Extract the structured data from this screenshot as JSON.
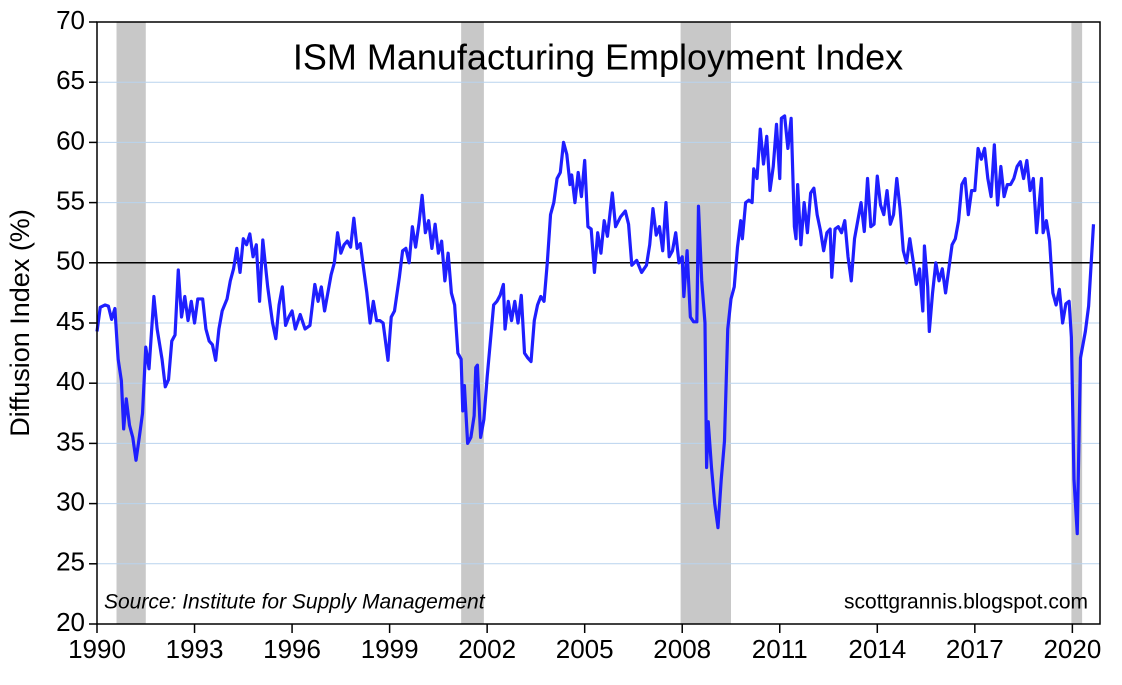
{
  "chart_data": {
    "type": "line",
    "title": "ISM Manufacturing Employment Index",
    "y_label": "Diffusion Index (%)",
    "source": "Source: Institute for Supply Management",
    "credit": "scottgrannis.blogspot.com",
    "xlim": [
      1990,
      2020.85
    ],
    "xticks": [
      1990,
      1993,
      1996,
      1999,
      2002,
      2005,
      2008,
      2011,
      2014,
      2017,
      2020
    ],
    "ylim": [
      20,
      70
    ],
    "yticks": [
      20,
      25,
      30,
      35,
      40,
      45,
      50,
      55,
      60,
      65,
      70
    ],
    "grid": true,
    "reference_line": 50,
    "recession_color": "#c8c8c8",
    "recessions": [
      [
        1990.6,
        1991.5
      ],
      [
        2001.2,
        2001.9
      ],
      [
        2007.95,
        2009.5
      ],
      [
        2019.97,
        2020.3
      ]
    ],
    "x": [
      1990.0,
      1990.1,
      1990.25,
      1990.35,
      1990.45,
      1990.55,
      1990.65,
      1990.75,
      1990.82,
      1990.9,
      1991.0,
      1991.1,
      1991.2,
      1991.3,
      1991.4,
      1991.5,
      1991.6,
      1991.75,
      1991.85,
      1992.0,
      1992.1,
      1992.2,
      1992.3,
      1992.4,
      1992.5,
      1992.6,
      1992.7,
      1992.8,
      1992.9,
      1993.0,
      1993.1,
      1993.25,
      1993.35,
      1993.45,
      1993.55,
      1993.65,
      1993.75,
      1993.85,
      1994.0,
      1994.1,
      1994.2,
      1994.3,
      1994.4,
      1994.5,
      1994.6,
      1994.7,
      1994.8,
      1994.9,
      1995.0,
      1995.1,
      1995.25,
      1995.4,
      1995.5,
      1995.6,
      1995.7,
      1995.8,
      1995.9,
      1996.0,
      1996.1,
      1996.25,
      1996.4,
      1996.55,
      1996.7,
      1996.8,
      1996.9,
      1997.0,
      1997.1,
      1997.2,
      1997.3,
      1997.4,
      1997.5,
      1997.6,
      1997.7,
      1997.8,
      1997.9,
      1998.0,
      1998.1,
      1998.2,
      1998.3,
      1998.4,
      1998.5,
      1998.6,
      1998.7,
      1998.8,
      1998.95,
      1999.05,
      1999.15,
      1999.3,
      1999.4,
      1999.5,
      1999.6,
      1999.7,
      1999.8,
      1999.9,
      2000.0,
      2000.1,
      2000.2,
      2000.3,
      2000.4,
      2000.5,
      2000.6,
      2000.7,
      2000.8,
      2000.9,
      2001.0,
      2001.1,
      2001.2,
      2001.25,
      2001.3,
      2001.4,
      2001.5,
      2001.6,
      2001.65,
      2001.7,
      2001.8,
      2001.9,
      2002.0,
      2002.1,
      2002.2,
      2002.3,
      2002.4,
      2002.5,
      2002.55,
      2002.65,
      2002.75,
      2002.85,
      2002.95,
      2003.05,
      2003.15,
      2003.25,
      2003.35,
      2003.45,
      2003.55,
      2003.65,
      2003.75,
      2003.85,
      2003.95,
      2004.05,
      2004.15,
      2004.25,
      2004.35,
      2004.45,
      2004.55,
      2004.6,
      2004.7,
      2004.8,
      2004.9,
      2005.0,
      2005.1,
      2005.2,
      2005.3,
      2005.4,
      2005.5,
      2005.6,
      2005.7,
      2005.85,
      2005.95,
      2006.1,
      2006.25,
      2006.35,
      2006.45,
      2006.6,
      2006.75,
      2006.9,
      2007.0,
      2007.1,
      2007.2,
      2007.3,
      2007.4,
      2007.5,
      2007.6,
      2007.7,
      2007.8,
      2007.9,
      2008.0,
      2008.05,
      2008.15,
      2008.25,
      2008.35,
      2008.45,
      2008.5,
      2008.6,
      2008.7,
      2008.75,
      2008.8,
      2008.9,
      2009.0,
      2009.1,
      2009.2,
      2009.3,
      2009.4,
      2009.5,
      2009.6,
      2009.7,
      2009.8,
      2009.85,
      2009.95,
      2010.05,
      2010.15,
      2010.2,
      2010.3,
      2010.4,
      2010.5,
      2010.6,
      2010.7,
      2010.8,
      2010.9,
      2011.0,
      2011.05,
      2011.15,
      2011.25,
      2011.35,
      2011.45,
      2011.5,
      2011.55,
      2011.65,
      2011.75,
      2011.85,
      2011.95,
      2012.05,
      2012.15,
      2012.25,
      2012.35,
      2012.45,
      2012.55,
      2012.6,
      2012.7,
      2012.8,
      2012.9,
      2013.0,
      2013.1,
      2013.2,
      2013.3,
      2013.4,
      2013.5,
      2013.6,
      2013.7,
      2013.8,
      2013.9,
      2014.0,
      2014.1,
      2014.2,
      2014.3,
      2014.4,
      2014.5,
      2014.6,
      2014.7,
      2014.8,
      2014.9,
      2015.0,
      2015.1,
      2015.2,
      2015.3,
      2015.4,
      2015.45,
      2015.55,
      2015.6,
      2015.7,
      2015.8,
      2015.9,
      2016.0,
      2016.1,
      2016.2,
      2016.3,
      2016.4,
      2016.5,
      2016.6,
      2016.7,
      2016.8,
      2016.9,
      2017.0,
      2017.1,
      2017.2,
      2017.3,
      2017.4,
      2017.5,
      2017.6,
      2017.7,
      2017.8,
      2017.9,
      2018.0,
      2018.1,
      2018.2,
      2018.3,
      2018.4,
      2018.5,
      2018.6,
      2018.7,
      2018.8,
      2018.9,
      2019.0,
      2019.05,
      2019.1,
      2019.2,
      2019.3,
      2019.4,
      2019.5,
      2019.6,
      2019.7,
      2019.8,
      2019.9,
      2019.97,
      2020.05,
      2020.15,
      2020.25,
      2020.4,
      2020.5,
      2020.65
    ],
    "series": [
      {
        "color": "#1f1fff",
        "values": [
          44.3,
          46.3,
          46.5,
          46.4,
          45.3,
          46.2,
          42,
          40.2,
          36.2,
          38.7,
          36.5,
          35.5,
          33.6,
          35.5,
          37.5,
          43,
          41.2,
          47.2,
          44.5,
          42,
          39.7,
          40.3,
          43.5,
          44,
          49.4,
          45.5,
          47.2,
          45.2,
          46.8,
          45,
          47,
          47,
          44.5,
          43.5,
          43.2,
          41.9,
          44.5,
          46,
          47,
          48.5,
          49.5,
          51.2,
          49.2,
          52,
          51.5,
          52.4,
          50.5,
          51.5,
          46.8,
          51.9,
          48,
          45,
          43.7,
          46.5,
          48,
          44.8,
          45.5,
          46,
          44.5,
          45.7,
          44.5,
          44.8,
          48.2,
          46.8,
          48,
          46,
          47.5,
          49,
          50,
          52.5,
          50.8,
          51.5,
          51.8,
          51.3,
          53.7,
          51.2,
          51.6,
          49.5,
          47.5,
          45,
          46.8,
          45.2,
          45.2,
          45,
          41.9,
          45.5,
          46,
          48.8,
          51,
          51.2,
          50,
          53,
          51.3,
          53.2,
          55.6,
          52.5,
          53.5,
          51.2,
          53.2,
          50.8,
          51.8,
          48.5,
          50.8,
          47.5,
          46.5,
          42.5,
          42,
          37.7,
          39.8,
          35,
          35.5,
          37.3,
          41.3,
          41.5,
          35.5,
          37,
          40.5,
          43.5,
          46.5,
          46.8,
          47.3,
          48.2,
          44.5,
          46.8,
          45.2,
          46.8,
          45,
          47.3,
          42.5,
          42.1,
          41.8,
          45.2,
          46.5,
          47.2,
          46.8,
          50,
          54,
          55,
          57,
          57.5,
          60,
          59,
          56.5,
          57.3,
          55,
          57.5,
          55.5,
          58.5,
          53,
          52.8,
          49.2,
          52.5,
          50.8,
          53.5,
          52.2,
          55.8,
          53,
          53.8,
          54.3,
          53.2,
          49.8,
          50.2,
          49.2,
          49.8,
          51.5,
          54.5,
          52.3,
          53,
          51,
          55,
          50.5,
          51,
          52.5,
          50,
          50.5,
          47.2,
          51,
          45.5,
          45.1,
          45.1,
          54.7,
          48.5,
          45,
          33,
          36.8,
          33,
          30,
          28,
          32,
          35.2,
          44.5,
          47,
          48,
          51.3,
          53.5,
          52,
          55,
          55.2,
          55,
          57.8,
          57,
          61.1,
          58.2,
          60.5,
          56,
          58,
          61.5,
          57,
          62,
          62.2,
          59.5,
          62,
          53,
          52,
          56.5,
          51.5,
          55,
          52.5,
          55.8,
          56.2,
          54,
          52.7,
          51,
          52.5,
          52.8,
          48.8,
          52.8,
          53,
          52.5,
          53.5,
          50.5,
          48.5,
          52,
          53.5,
          55,
          52.6,
          57,
          53,
          53.2,
          57.2,
          54.8,
          54,
          56,
          53.2,
          54,
          57,
          54.5,
          51,
          50,
          52,
          50.2,
          48.2,
          49.5,
          46,
          51.4,
          48,
          44.3,
          47.5,
          50,
          48.5,
          49.5,
          47.5,
          49.5,
          51.5,
          52,
          53.5,
          56.5,
          57,
          54,
          56,
          56,
          59.5,
          58.6,
          59.5,
          57,
          55.5,
          59.8,
          54.8,
          58,
          55.5,
          56.5,
          56.5,
          57,
          58,
          58.4,
          57,
          58.5,
          56,
          57,
          52.5,
          55.5,
          57,
          52.5,
          53.5,
          51.8,
          47.5,
          46.5,
          47.8,
          45,
          46.6,
          46.8,
          43.8,
          32,
          27.5,
          42.1,
          44.3,
          46.4,
          53.2
        ]
      }
    ]
  }
}
